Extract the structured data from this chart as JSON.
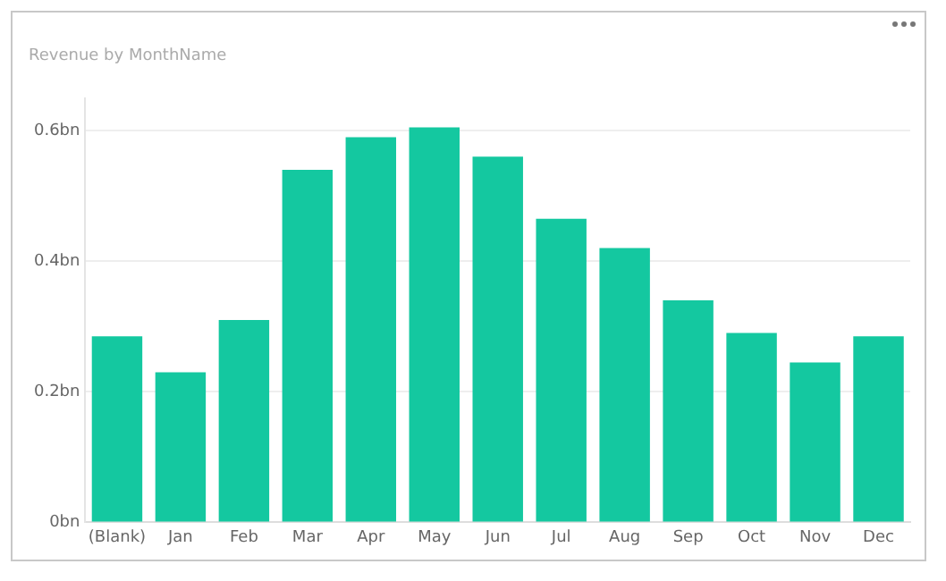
{
  "chart_data": {
    "type": "bar",
    "title": "Revenue by MonthName",
    "categories": [
      "(Blank)",
      "Jan",
      "Feb",
      "Mar",
      "Apr",
      "May",
      "Jun",
      "Jul",
      "Aug",
      "Sep",
      "Oct",
      "Nov",
      "Dec"
    ],
    "values": [
      0.285,
      0.23,
      0.31,
      0.54,
      0.59,
      0.605,
      0.56,
      0.465,
      0.42,
      0.34,
      0.29,
      0.245,
      0.285
    ],
    "color": "#14c8a0",
    "ylim": [
      0,
      0.65
    ],
    "yticks": [
      {
        "value": 0,
        "label": "0bn"
      },
      {
        "value": 0.2,
        "label": "0.2bn"
      },
      {
        "value": 0.4,
        "label": "0.4bn"
      },
      {
        "value": 0.6,
        "label": "0.6bn"
      }
    ],
    "grid": "y",
    "legend": false
  }
}
